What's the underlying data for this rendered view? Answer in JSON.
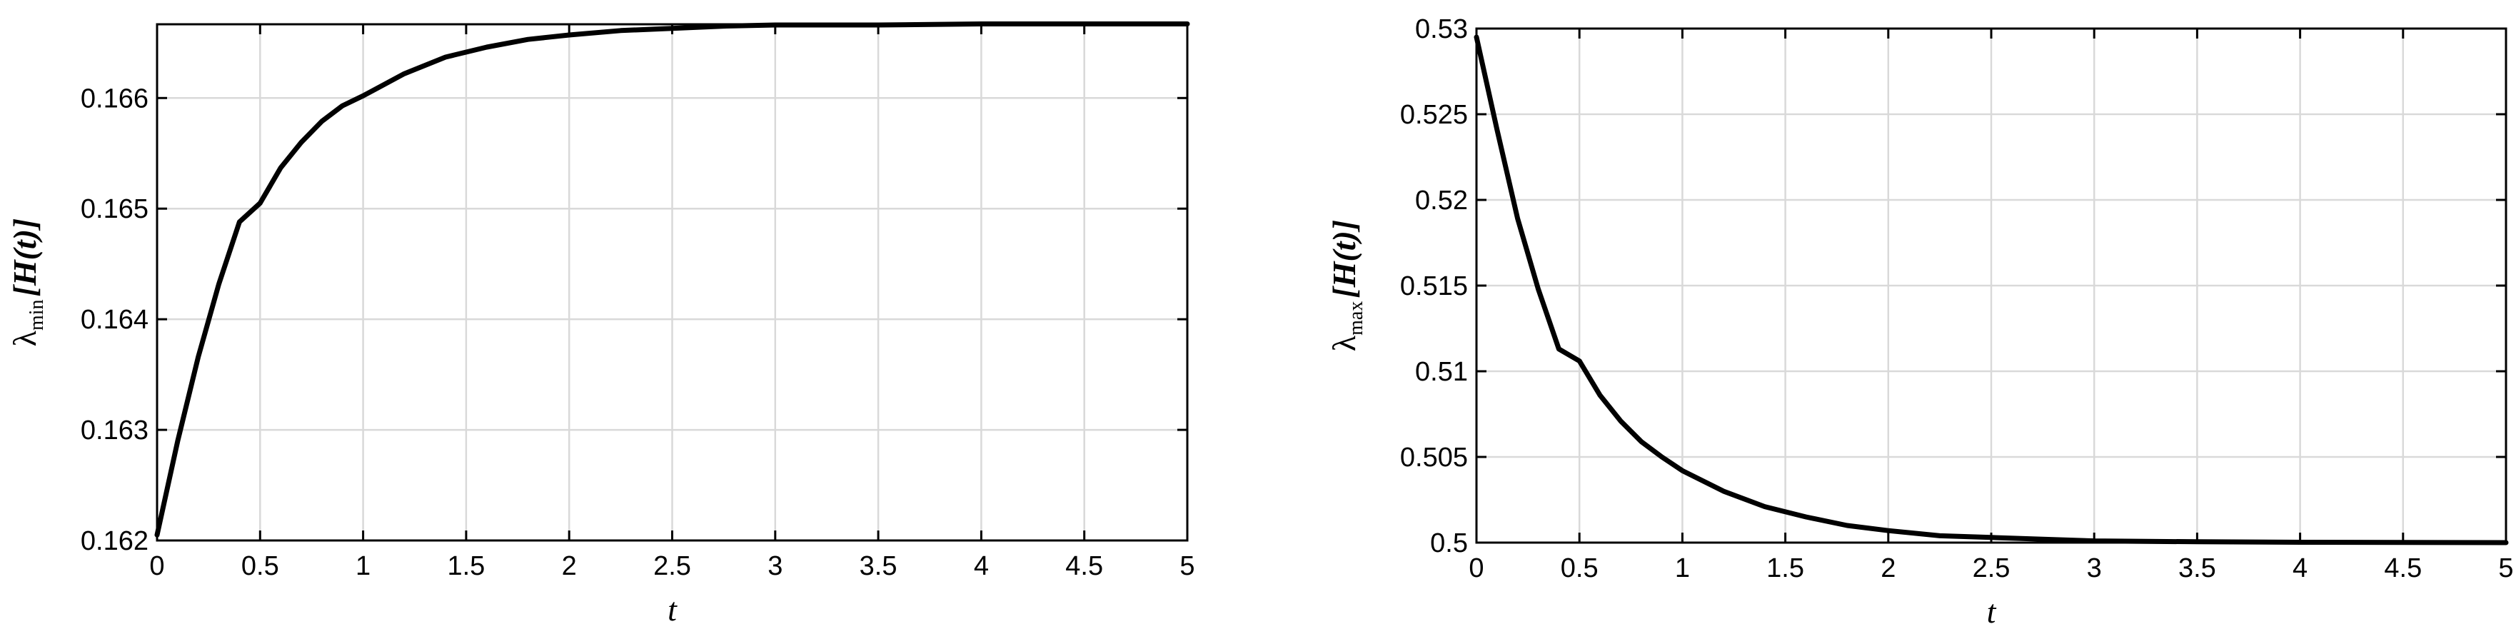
{
  "chart_data": [
    {
      "type": "line",
      "xlabel": "t",
      "ylabel": {
        "symbol": "λ",
        "sub": "min",
        "arg": "[H(t)]"
      },
      "xlim": [
        0,
        5
      ],
      "ylim": [
        0.162,
        0.1666667
      ],
      "x_ticks": [
        0,
        0.5,
        1,
        1.5,
        2,
        2.5,
        3,
        3.5,
        4,
        4.5,
        5
      ],
      "x_tick_labels": [
        "0",
        "0.5",
        "1",
        "1.5",
        "2",
        "2.5",
        "3",
        "3.5",
        "4",
        "4.5",
        "5"
      ],
      "y_ticks": [
        0.162,
        0.163,
        0.164,
        0.165,
        0.166
      ],
      "y_tick_labels": [
        "0.162",
        "0.163",
        "0.164",
        "0.165",
        "0.166"
      ],
      "grid": true,
      "series": [
        {
          "color": "#000000",
          "x": [
            0,
            0.1,
            0.2,
            0.3,
            0.4,
            0.5,
            0.6,
            0.7,
            0.8,
            0.9,
            1.0,
            1.2,
            1.4,
            1.6,
            1.8,
            2.0,
            2.25,
            2.5,
            2.75,
            3.0,
            3.5,
            4.0,
            4.5,
            5.0
          ],
          "y": [
            0.16205,
            0.1629,
            0.16366,
            0.16432,
            0.16488,
            0.16505,
            0.16537,
            0.1656,
            0.16579,
            0.16593,
            0.16602,
            0.16622,
            0.16637,
            0.16646,
            0.16653,
            0.16657,
            0.16661,
            0.16663,
            0.16665,
            0.16666,
            0.16666,
            0.16667,
            0.16667,
            0.16667
          ]
        }
      ]
    },
    {
      "type": "line",
      "xlabel": "t",
      "ylabel": {
        "symbol": "λ",
        "sub": "max",
        "arg": "[H(t)]"
      },
      "xlim": [
        0,
        5
      ],
      "ylim": [
        0.5,
        0.53
      ],
      "x_ticks": [
        0,
        0.5,
        1,
        1.5,
        2,
        2.5,
        3,
        3.5,
        4,
        4.5,
        5
      ],
      "x_tick_labels": [
        "0",
        "0.5",
        "1",
        "1.5",
        "2",
        "2.5",
        "3",
        "3.5",
        "4",
        "4.5",
        "5"
      ],
      "y_ticks": [
        0.5,
        0.505,
        0.51,
        0.515,
        0.52,
        0.525,
        0.53
      ],
      "y_tick_labels": [
        "0.5",
        "0.505",
        "0.51",
        "0.515",
        "0.52",
        "0.525",
        "0.53"
      ],
      "grid": true,
      "series": [
        {
          "color": "#000000",
          "x": [
            0,
            0.1,
            0.2,
            0.3,
            0.4,
            0.5,
            0.6,
            0.7,
            0.8,
            0.9,
            1.0,
            1.2,
            1.4,
            1.6,
            1.8,
            2.0,
            2.25,
            2.5,
            2.75,
            3.0,
            3.5,
            4.0,
            4.5,
            5.0
          ],
          "y": [
            0.5295,
            0.5241,
            0.5189,
            0.5148,
            0.5113,
            0.5106,
            0.5086,
            0.5071,
            0.5059,
            0.505,
            0.5042,
            0.503,
            0.5021,
            0.5015,
            0.501,
            0.5007,
            0.5004,
            0.5003,
            0.5002,
            0.5001,
            0.50005,
            0.50002,
            0.50001,
            0.5
          ]
        }
      ]
    }
  ]
}
